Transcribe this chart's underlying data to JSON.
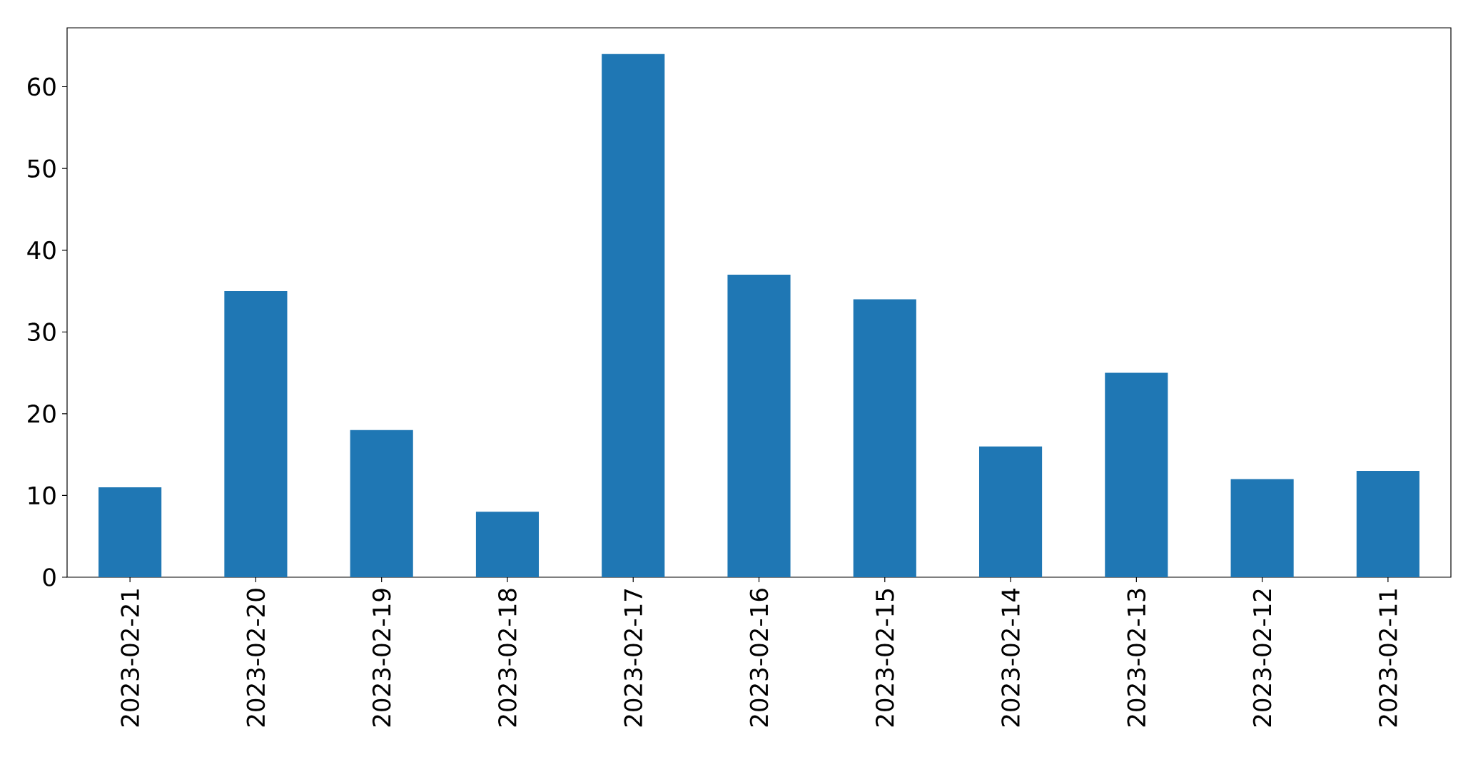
{
  "chart_data": {
    "type": "bar",
    "categories": [
      "2023-02-21",
      "2023-02-20",
      "2023-02-19",
      "2023-02-18",
      "2023-02-17",
      "2023-02-16",
      "2023-02-15",
      "2023-02-14",
      "2023-02-13",
      "2023-02-12",
      "2023-02-11"
    ],
    "values": [
      11,
      35,
      18,
      8,
      64,
      37,
      34,
      16,
      25,
      12,
      13
    ],
    "color": "#1f77b4",
    "ylim": [
      0,
      67.2
    ],
    "yticks": [
      0,
      10,
      20,
      30,
      40,
      50,
      60
    ]
  }
}
